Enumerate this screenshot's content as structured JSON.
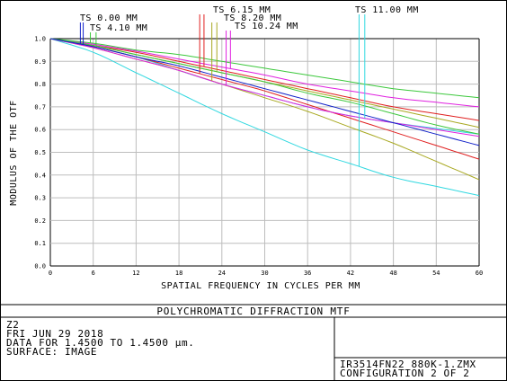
{
  "chart_data": {
    "type": "line",
    "title": "POLYCHROMATIC DIFFRACTION MTF",
    "xlabel": "SPATIAL FREQUENCY IN CYCLES PER MM",
    "ylabel": "MODULUS OF THE OTF",
    "xlim": [
      0,
      60
    ],
    "ylim": [
      0,
      1
    ],
    "xticks": [
      "0",
      "6",
      "12",
      "18",
      "24",
      "30",
      "36",
      "42",
      "48",
      "54",
      "60"
    ],
    "yticks": [
      "0.0",
      "0.1",
      "0.2",
      "0.3",
      "0.4",
      "0.5",
      "0.6",
      "0.7",
      "0.8",
      "0.9",
      "1.0"
    ],
    "grid": true,
    "legend": [
      {
        "label": "TS 0.00 MM",
        "color": "#1020c8",
        "freq": [
          4.2,
          4.6
        ]
      },
      {
        "label": "TS 4.10 MM",
        "color": "#3cc83c",
        "freq": [
          5.6,
          6.4
        ]
      },
      {
        "label": "TS 6.15 MM",
        "color": "#e02020",
        "freq": [
          20.9,
          21.5
        ]
      },
      {
        "label": "TS 8.20 MM",
        "color": "#a8a820",
        "freq": [
          22.6,
          23.3
        ]
      },
      {
        "label": "TS 10.24 MM",
        "color": "#e020e0",
        "freq": [
          24.6,
          25.2
        ]
      },
      {
        "label": "TS 11.00 MM",
        "color": "#30d8e0",
        "freq": [
          43.2,
          44.0
        ]
      }
    ],
    "series": [
      {
        "color": "#30d8e0",
        "x": [
          0,
          6,
          12,
          18,
          24,
          30,
          36,
          42,
          48,
          54,
          60
        ],
        "y": [
          1.0,
          0.94,
          0.85,
          0.76,
          0.67,
          0.59,
          0.51,
          0.45,
          0.39,
          0.35,
          0.31
        ]
      },
      {
        "color": "#30d8e0",
        "x": [
          0,
          6,
          12,
          18,
          24,
          30,
          36,
          42,
          48,
          54,
          60
        ],
        "y": [
          1.0,
          0.965,
          0.92,
          0.86,
          0.8,
          0.75,
          0.7,
          0.66,
          0.63,
          0.605,
          0.58
        ]
      },
      {
        "color": "#a8a820",
        "x": [
          0,
          6,
          12,
          18,
          24,
          30,
          36,
          42,
          48,
          54,
          60
        ],
        "y": [
          1.0,
          0.96,
          0.91,
          0.86,
          0.8,
          0.74,
          0.68,
          0.61,
          0.54,
          0.46,
          0.38
        ]
      },
      {
        "color": "#a8a820",
        "x": [
          0,
          6,
          12,
          18,
          24,
          30,
          36,
          42,
          48,
          54,
          60
        ],
        "y": [
          1.0,
          0.97,
          0.93,
          0.89,
          0.85,
          0.81,
          0.77,
          0.73,
          0.69,
          0.65,
          0.61
        ]
      },
      {
        "color": "#e02020",
        "x": [
          0,
          6,
          12,
          18,
          24,
          30,
          36,
          42,
          48,
          54,
          60
        ],
        "y": [
          1.0,
          0.965,
          0.92,
          0.87,
          0.82,
          0.77,
          0.71,
          0.65,
          0.59,
          0.53,
          0.47
        ]
      },
      {
        "color": "#e02020",
        "x": [
          0,
          6,
          12,
          18,
          24,
          30,
          36,
          42,
          48,
          54,
          60
        ],
        "y": [
          1.0,
          0.97,
          0.94,
          0.9,
          0.86,
          0.82,
          0.78,
          0.74,
          0.7,
          0.67,
          0.64
        ]
      },
      {
        "color": "#e020e0",
        "x": [
          0,
          6,
          12,
          18,
          24,
          30,
          36,
          42,
          48,
          54,
          60
        ],
        "y": [
          1.0,
          0.96,
          0.91,
          0.86,
          0.8,
          0.75,
          0.7,
          0.66,
          0.63,
          0.6,
          0.57
        ]
      },
      {
        "color": "#e020e0",
        "x": [
          0,
          6,
          12,
          18,
          24,
          30,
          36,
          42,
          48,
          54,
          60
        ],
        "y": [
          1.0,
          0.975,
          0.945,
          0.91,
          0.875,
          0.84,
          0.8,
          0.77,
          0.74,
          0.72,
          0.7
        ]
      },
      {
        "color": "#3cc83c",
        "x": [
          0,
          6,
          12,
          18,
          24,
          30,
          36,
          42,
          48,
          54,
          60
        ],
        "y": [
          1.0,
          0.98,
          0.95,
          0.93,
          0.9,
          0.87,
          0.84,
          0.81,
          0.78,
          0.76,
          0.74
        ]
      },
      {
        "color": "#3cc83c",
        "x": [
          0,
          6,
          12,
          18,
          24,
          30,
          36,
          42,
          48,
          54,
          60
        ],
        "y": [
          1.0,
          0.97,
          0.93,
          0.89,
          0.85,
          0.81,
          0.76,
          0.72,
          0.67,
          0.62,
          0.58
        ]
      },
      {
        "color": "#1020c8",
        "x": [
          0,
          6,
          12,
          18,
          24,
          30,
          36,
          42,
          48,
          54,
          60
        ],
        "y": [
          1.0,
          0.965,
          0.92,
          0.88,
          0.83,
          0.78,
          0.73,
          0.68,
          0.63,
          0.58,
          0.53
        ]
      }
    ]
  },
  "info": {
    "field1": "Z2",
    "field2": "FRI JUN 29 2018",
    "field3": "DATA FOR 1.4500 TO 1.4500 µm.",
    "field4": "SURFACE: IMAGE",
    "filename": "IR3514FN22_880K-1.ZMX",
    "configuration": "CONFIGURATION 2 OF 2"
  }
}
